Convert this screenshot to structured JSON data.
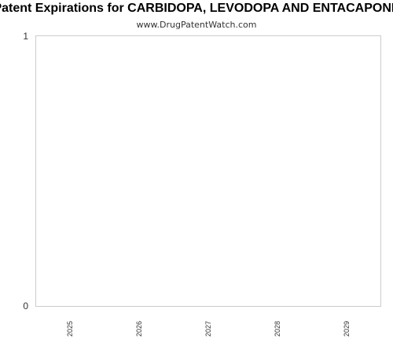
{
  "chart_data": {
    "type": "bar",
    "title": "Patent Expirations for CARBIDOPA, LEVODOPA AND ENTACAPONE",
    "subtitle": "www.DrugPatentWatch.com",
    "categories": [
      "2025",
      "2026",
      "2027",
      "2028",
      "2029"
    ],
    "values": [
      0,
      0,
      0,
      0,
      0
    ],
    "xlabel": "",
    "ylabel": "",
    "ylim": [
      0,
      1
    ],
    "yticks": [
      "0",
      "1"
    ],
    "grid": false,
    "legend": "none",
    "colors": {
      "plot_border": "#cccccc",
      "tick_text": "#333333",
      "bar": "#4a7ebb"
    }
  }
}
